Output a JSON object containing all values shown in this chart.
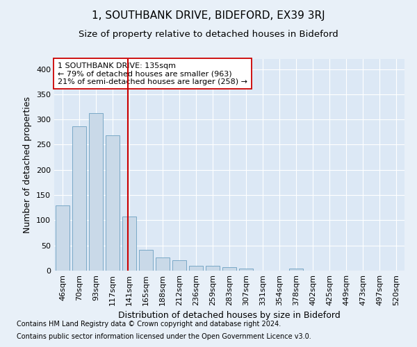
{
  "title": "1, SOUTHBANK DRIVE, BIDEFORD, EX39 3RJ",
  "subtitle": "Size of property relative to detached houses in Bideford",
  "xlabel": "Distribution of detached houses by size in Bideford",
  "ylabel": "Number of detached properties",
  "footnote1": "Contains HM Land Registry data © Crown copyright and database right 2024.",
  "footnote2": "Contains public sector information licensed under the Open Government Licence v3.0.",
  "categories": [
    "46sqm",
    "70sqm",
    "93sqm",
    "117sqm",
    "141sqm",
    "165sqm",
    "188sqm",
    "212sqm",
    "236sqm",
    "259sqm",
    "283sqm",
    "307sqm",
    "331sqm",
    "354sqm",
    "378sqm",
    "402sqm",
    "425sqm",
    "449sqm",
    "473sqm",
    "497sqm",
    "520sqm"
  ],
  "values": [
    130,
    287,
    312,
    268,
    108,
    42,
    26,
    21,
    10,
    9,
    7,
    4,
    0,
    0,
    4,
    0,
    0,
    0,
    0,
    0,
    0
  ],
  "bar_color": "#c9d9e8",
  "bar_edge_color": "#6a9fc0",
  "vline_color": "#cc0000",
  "vline_index": 4,
  "annotation_text": "1 SOUTHBANK DRIVE: 135sqm\n← 79% of detached houses are smaller (963)\n21% of semi-detached houses are larger (258) →",
  "annotation_box_color": "#ffffff",
  "annotation_box_edge": "#cc0000",
  "ylim": [
    0,
    420
  ],
  "yticks": [
    0,
    50,
    100,
    150,
    200,
    250,
    300,
    350,
    400
  ],
  "bg_color": "#e8f0f8",
  "plot_bg_color": "#dce8f5",
  "grid_color": "#ffffff",
  "title_fontsize": 11,
  "subtitle_fontsize": 9.5,
  "xlabel_fontsize": 9,
  "ylabel_fontsize": 9,
  "tick_fontsize": 8,
  "annot_fontsize": 8,
  "footnote_fontsize": 7
}
